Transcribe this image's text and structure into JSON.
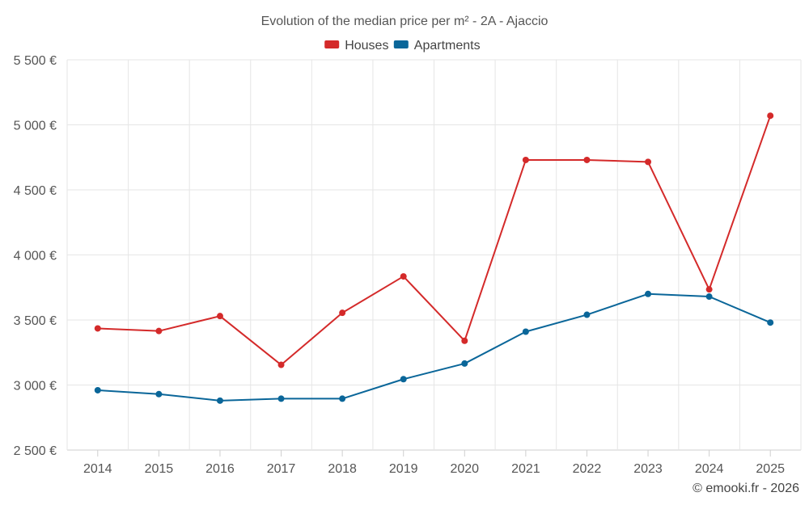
{
  "chart_data": {
    "type": "line",
    "title": "Evolution of the median price per m² - 2A - Ajaccio",
    "categories": [
      "2014",
      "2015",
      "2016",
      "2017",
      "2018",
      "2019",
      "2020",
      "2021",
      "2022",
      "2023",
      "2024",
      "2025"
    ],
    "series": [
      {
        "name": "Houses",
        "color": "#d42a2a",
        "values": [
          3435,
          3415,
          3530,
          3155,
          3555,
          3835,
          3340,
          4730,
          4730,
          4715,
          3735,
          5070
        ]
      },
      {
        "name": "Apartments",
        "color": "#0a6699",
        "values": [
          2960,
          2930,
          2880,
          2895,
          2895,
          3045,
          3165,
          3410,
          3540,
          3700,
          3680,
          3480
        ]
      }
    ],
    "ylim": [
      2500,
      5500
    ],
    "yticks": [
      2500,
      3000,
      3500,
      4000,
      4500,
      5000,
      5500
    ],
    "ytick_labels": [
      "2 500 €",
      "3 000 €",
      "3 500 €",
      "4 000 €",
      "4 500 €",
      "5 000 €",
      "5 500 €"
    ],
    "xlabel": "",
    "ylabel": "",
    "grid": true,
    "legend_position": "top-center"
  },
  "credit": "© emooki.fr - 2026"
}
